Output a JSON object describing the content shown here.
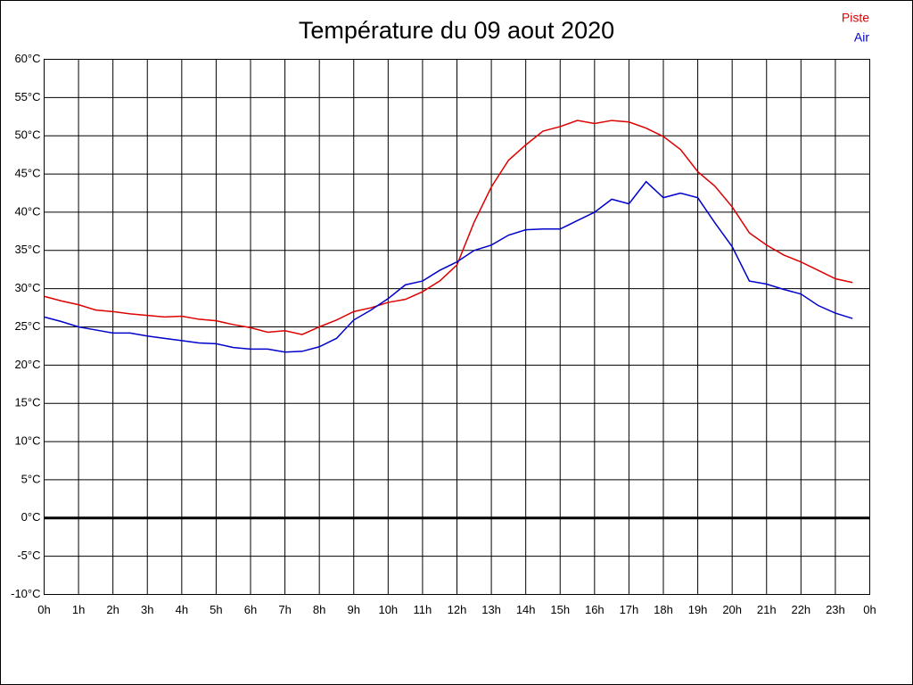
{
  "chart_data": {
    "type": "line",
    "title": "Température du 09 aout 2020",
    "x": [
      0,
      0.5,
      1,
      1.5,
      2,
      2.5,
      3,
      3.5,
      4,
      4.5,
      5,
      5.5,
      6,
      6.5,
      7,
      7.5,
      8,
      8.5,
      9,
      9.5,
      10,
      10.5,
      11,
      11.5,
      12,
      12.5,
      13,
      13.5,
      14,
      14.5,
      15,
      15.5,
      16,
      16.5,
      17,
      17.5,
      18,
      18.5,
      19,
      19.5,
      20,
      20.5,
      21,
      21.5,
      22,
      22.5,
      23,
      23.5
    ],
    "series": [
      {
        "name": "Piste",
        "color": "#dd0000",
        "values": [
          29.0,
          28.4,
          27.9,
          27.2,
          27.0,
          26.7,
          26.5,
          26.3,
          26.4,
          26.0,
          25.8,
          25.3,
          24.9,
          24.3,
          24.5,
          24.0,
          25.0,
          25.9,
          27.0,
          27.5,
          28.2,
          28.6,
          29.6,
          31.0,
          33.1,
          38.7,
          43.3,
          46.8,
          48.8,
          50.6,
          51.2,
          52.0,
          51.6,
          52.0,
          51.8,
          51.0,
          49.9,
          48.2,
          45.3,
          43.4,
          40.7,
          37.3,
          35.7,
          34.4,
          33.5,
          32.4,
          31.3,
          30.8
        ]
      },
      {
        "name": "Air",
        "color": "#0000cc",
        "values": [
          26.3,
          25.7,
          25.0,
          24.6,
          24.2,
          24.2,
          23.8,
          23.5,
          23.2,
          22.9,
          22.8,
          22.3,
          22.1,
          22.1,
          21.7,
          21.8,
          22.4,
          23.5,
          25.9,
          27.2,
          28.7,
          30.5,
          31.0,
          32.4,
          33.5,
          35.0,
          35.7,
          37.0,
          37.7,
          37.8,
          37.8,
          38.9,
          40.0,
          41.7,
          41.1,
          44.0,
          41.9,
          42.5,
          41.9,
          38.6,
          35.5,
          31.0,
          30.6,
          29.9,
          29.3,
          27.8,
          26.8,
          26.1
        ]
      }
    ],
    "xlim": [
      0,
      24
    ],
    "xticks": [
      {
        "value": 0,
        "label": "0h"
      },
      {
        "value": 1,
        "label": "1h"
      },
      {
        "value": 2,
        "label": "2h"
      },
      {
        "value": 3,
        "label": "3h"
      },
      {
        "value": 4,
        "label": "4h"
      },
      {
        "value": 5,
        "label": "5h"
      },
      {
        "value": 6,
        "label": "6h"
      },
      {
        "value": 7,
        "label": "7h"
      },
      {
        "value": 8,
        "label": "8h"
      },
      {
        "value": 9,
        "label": "9h"
      },
      {
        "value": 10,
        "label": "10h"
      },
      {
        "value": 11,
        "label": "11h"
      },
      {
        "value": 12,
        "label": "12h"
      },
      {
        "value": 13,
        "label": "13h"
      },
      {
        "value": 14,
        "label": "14h"
      },
      {
        "value": 15,
        "label": "15h"
      },
      {
        "value": 16,
        "label": "16h"
      },
      {
        "value": 17,
        "label": "17h"
      },
      {
        "value": 18,
        "label": "18h"
      },
      {
        "value": 19,
        "label": "19h"
      },
      {
        "value": 20,
        "label": "20h"
      },
      {
        "value": 21,
        "label": "21h"
      },
      {
        "value": 22,
        "label": "22h"
      },
      {
        "value": 23,
        "label": "23h"
      },
      {
        "value": 24,
        "label": "0h"
      }
    ],
    "ylim": [
      -10,
      60
    ],
    "yticks": [
      {
        "value": -10,
        "label": "-10°C"
      },
      {
        "value": -5,
        "label": "-5°C"
      },
      {
        "value": 0,
        "label": "0°C"
      },
      {
        "value": 5,
        "label": "5°C"
      },
      {
        "value": 10,
        "label": "10°C"
      },
      {
        "value": 15,
        "label": "15°C"
      },
      {
        "value": 20,
        "label": "20°C"
      },
      {
        "value": 25,
        "label": "25°C"
      },
      {
        "value": 30,
        "label": "30°C"
      },
      {
        "value": 35,
        "label": "35°C"
      },
      {
        "value": 40,
        "label": "40°C"
      },
      {
        "value": 45,
        "label": "45°C"
      },
      {
        "value": 50,
        "label": "50°C"
      },
      {
        "value": 55,
        "label": "55°C"
      },
      {
        "value": 60,
        "label": "60°C"
      }
    ],
    "grid": true,
    "zero_line": true,
    "legend": "top-right"
  }
}
